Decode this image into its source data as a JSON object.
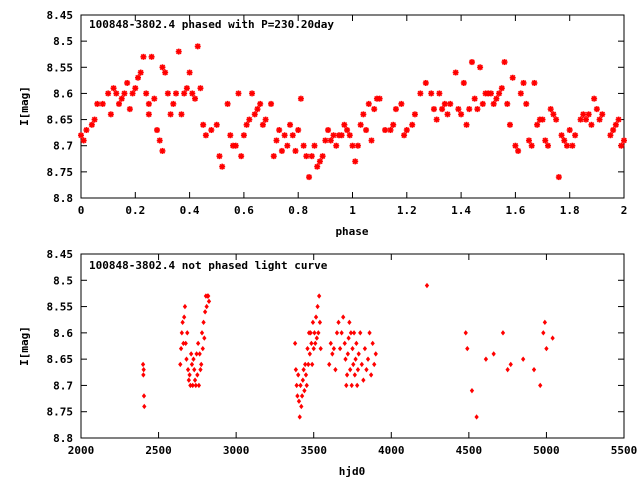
{
  "colors": {
    "points": "#ff0000",
    "axes": "#000000",
    "background": "#ffffff"
  },
  "chart_data": [
    {
      "type": "scatter",
      "title": "100848-3802.4 phased with P=230.20day",
      "xlabel": "phase",
      "ylabel": "I[mag]",
      "xlim": [
        0,
        2
      ],
      "ylim": [
        8.8,
        8.45
      ],
      "y_inverted": true,
      "grid": false,
      "legend": "none",
      "marker": "asterisk",
      "xticks": [
        "0",
        "0.2",
        "0.4",
        "0.6",
        "0.8",
        "1",
        "1.2",
        "1.4",
        "1.6",
        "1.8",
        "2"
      ],
      "yticks": [
        "8.45",
        "8.5",
        "8.55",
        "8.6",
        "8.65",
        "8.7",
        "8.75",
        "8.8"
      ],
      "points": [
        [
          0.0,
          8.68
        ],
        [
          0.01,
          8.69
        ],
        [
          0.02,
          8.67
        ],
        [
          0.04,
          8.66
        ],
        [
          0.05,
          8.65
        ],
        [
          0.06,
          8.62
        ],
        [
          0.08,
          8.62
        ],
        [
          0.1,
          8.6
        ],
        [
          0.11,
          8.64
        ],
        [
          0.12,
          8.59
        ],
        [
          0.13,
          8.6
        ],
        [
          0.14,
          8.62
        ],
        [
          0.15,
          8.61
        ],
        [
          0.16,
          8.6
        ],
        [
          0.17,
          8.58
        ],
        [
          0.18,
          8.63
        ],
        [
          0.19,
          8.6
        ],
        [
          0.2,
          8.59
        ],
        [
          0.21,
          8.57
        ],
        [
          0.22,
          8.56
        ],
        [
          0.23,
          8.53
        ],
        [
          0.24,
          8.6
        ],
        [
          0.25,
          8.62
        ],
        [
          0.25,
          8.64
        ],
        [
          0.26,
          8.53
        ],
        [
          0.27,
          8.61
        ],
        [
          0.28,
          8.67
        ],
        [
          0.29,
          8.69
        ],
        [
          0.3,
          8.71
        ],
        [
          0.3,
          8.55
        ],
        [
          0.31,
          8.56
        ],
        [
          0.32,
          8.6
        ],
        [
          0.33,
          8.64
        ],
        [
          0.34,
          8.62
        ],
        [
          0.35,
          8.6
        ],
        [
          0.36,
          8.52
        ],
        [
          0.37,
          8.64
        ],
        [
          0.38,
          8.6
        ],
        [
          0.39,
          8.59
        ],
        [
          0.4,
          8.56
        ],
        [
          0.41,
          8.6
        ],
        [
          0.42,
          8.61
        ],
        [
          0.43,
          8.51
        ],
        [
          0.44,
          8.59
        ],
        [
          0.45,
          8.66
        ],
        [
          0.46,
          8.68
        ],
        [
          0.48,
          8.67
        ],
        [
          0.5,
          8.66
        ],
        [
          0.51,
          8.72
        ],
        [
          0.52,
          8.74
        ],
        [
          0.54,
          8.62
        ],
        [
          0.55,
          8.68
        ],
        [
          0.56,
          8.7
        ],
        [
          0.57,
          8.7
        ],
        [
          0.58,
          8.6
        ],
        [
          0.59,
          8.72
        ],
        [
          0.6,
          8.68
        ],
        [
          0.61,
          8.66
        ],
        [
          0.62,
          8.65
        ],
        [
          0.63,
          8.6
        ],
        [
          0.64,
          8.64
        ],
        [
          0.65,
          8.63
        ],
        [
          0.66,
          8.62
        ],
        [
          0.67,
          8.66
        ],
        [
          0.68,
          8.65
        ],
        [
          0.7,
          8.62
        ],
        [
          0.71,
          8.72
        ],
        [
          0.72,
          8.69
        ],
        [
          0.73,
          8.67
        ],
        [
          0.74,
          8.71
        ],
        [
          0.75,
          8.68
        ],
        [
          0.76,
          8.7
        ],
        [
          0.77,
          8.66
        ],
        [
          0.78,
          8.68
        ],
        [
          0.79,
          8.71
        ],
        [
          0.8,
          8.67
        ],
        [
          0.81,
          8.61
        ],
        [
          0.82,
          8.7
        ],
        [
          0.83,
          8.72
        ],
        [
          0.84,
          8.76
        ],
        [
          0.85,
          8.72
        ],
        [
          0.86,
          8.7
        ],
        [
          0.87,
          8.74
        ],
        [
          0.88,
          8.73
        ],
        [
          0.89,
          8.72
        ],
        [
          0.9,
          8.69
        ],
        [
          0.91,
          8.67
        ],
        [
          0.92,
          8.69
        ],
        [
          0.93,
          8.68
        ],
        [
          0.94,
          8.7
        ],
        [
          0.95,
          8.68
        ],
        [
          0.96,
          8.68
        ],
        [
          0.97,
          8.66
        ],
        [
          0.98,
          8.67
        ],
        [
          0.99,
          8.68
        ],
        [
          1.0,
          8.7
        ],
        [
          1.01,
          8.73
        ],
        [
          1.02,
          8.7
        ],
        [
          1.03,
          8.66
        ],
        [
          1.04,
          8.64
        ],
        [
          1.05,
          8.67
        ],
        [
          1.06,
          8.62
        ],
        [
          1.07,
          8.69
        ],
        [
          1.08,
          8.63
        ],
        [
          1.09,
          8.61
        ],
        [
          1.1,
          8.61
        ],
        [
          1.12,
          8.67
        ],
        [
          1.14,
          8.67
        ],
        [
          1.15,
          8.66
        ],
        [
          1.16,
          8.63
        ],
        [
          1.18,
          8.62
        ],
        [
          1.19,
          8.68
        ],
        [
          1.2,
          8.67
        ],
        [
          1.22,
          8.66
        ],
        [
          1.23,
          8.64
        ],
        [
          1.25,
          8.6
        ],
        [
          1.27,
          8.58
        ],
        [
          1.29,
          8.6
        ],
        [
          1.3,
          8.63
        ],
        [
          1.31,
          8.65
        ],
        [
          1.32,
          8.6
        ],
        [
          1.33,
          8.63
        ],
        [
          1.34,
          8.62
        ],
        [
          1.35,
          8.64
        ],
        [
          1.36,
          8.62
        ],
        [
          1.38,
          8.56
        ],
        [
          1.39,
          8.63
        ],
        [
          1.4,
          8.64
        ],
        [
          1.41,
          8.58
        ],
        [
          1.42,
          8.66
        ],
        [
          1.43,
          8.63
        ],
        [
          1.44,
          8.54
        ],
        [
          1.45,
          8.61
        ],
        [
          1.46,
          8.63
        ],
        [
          1.47,
          8.55
        ],
        [
          1.48,
          8.62
        ],
        [
          1.49,
          8.6
        ],
        [
          1.5,
          8.6
        ],
        [
          1.51,
          8.6
        ],
        [
          1.52,
          8.62
        ],
        [
          1.53,
          8.61
        ],
        [
          1.54,
          8.6
        ],
        [
          1.55,
          8.59
        ],
        [
          1.56,
          8.54
        ],
        [
          1.57,
          8.62
        ],
        [
          1.58,
          8.66
        ],
        [
          1.59,
          8.57
        ],
        [
          1.6,
          8.7
        ],
        [
          1.61,
          8.71
        ],
        [
          1.62,
          8.6
        ],
        [
          1.63,
          8.58
        ],
        [
          1.64,
          8.62
        ],
        [
          1.65,
          8.69
        ],
        [
          1.66,
          8.7
        ],
        [
          1.67,
          8.58
        ],
        [
          1.68,
          8.66
        ],
        [
          1.69,
          8.65
        ],
        [
          1.7,
          8.65
        ],
        [
          1.71,
          8.69
        ],
        [
          1.72,
          8.7
        ],
        [
          1.73,
          8.63
        ],
        [
          1.74,
          8.64
        ],
        [
          1.75,
          8.65
        ],
        [
          1.76,
          8.76
        ],
        [
          1.77,
          8.68
        ],
        [
          1.78,
          8.69
        ],
        [
          1.79,
          8.7
        ],
        [
          1.8,
          8.67
        ],
        [
          1.81,
          8.7
        ],
        [
          1.82,
          8.68
        ],
        [
          1.84,
          8.65
        ],
        [
          1.85,
          8.64
        ],
        [
          1.86,
          8.65
        ],
        [
          1.87,
          8.64
        ],
        [
          1.88,
          8.66
        ],
        [
          1.89,
          8.61
        ],
        [
          1.9,
          8.63
        ],
        [
          1.91,
          8.65
        ],
        [
          1.92,
          8.64
        ],
        [
          1.95,
          8.68
        ],
        [
          1.96,
          8.67
        ],
        [
          1.97,
          8.66
        ],
        [
          1.98,
          8.65
        ],
        [
          1.99,
          8.7
        ],
        [
          2.0,
          8.69
        ]
      ]
    },
    {
      "type": "scatter",
      "title": "100848-3802.4 not phased light curve",
      "xlabel": "hjd0",
      "ylabel": "I[mag]",
      "xlim": [
        2000,
        5500
      ],
      "ylim": [
        8.8,
        8.45
      ],
      "y_inverted": true,
      "grid": false,
      "legend": "none",
      "marker": "diamond",
      "xticks": [
        "2000",
        "2500",
        "3000",
        "3500",
        "4000",
        "4500",
        "5000",
        "5500"
      ],
      "yticks": [
        "8.45",
        "8.5",
        "8.55",
        "8.6",
        "8.65",
        "8.7",
        "8.75",
        "8.8"
      ],
      "points": [
        [
          2400,
          8.66
        ],
        [
          2402,
          8.68
        ],
        [
          2404,
          8.67
        ],
        [
          2406,
          8.72
        ],
        [
          2408,
          8.74
        ],
        [
          2640,
          8.66
        ],
        [
          2645,
          8.63
        ],
        [
          2650,
          8.6
        ],
        [
          2655,
          8.58
        ],
        [
          2660,
          8.62
        ],
        [
          2665,
          8.57
        ],
        [
          2670,
          8.55
        ],
        [
          2675,
          8.62
        ],
        [
          2680,
          8.65
        ],
        [
          2685,
          8.6
        ],
        [
          2690,
          8.67
        ],
        [
          2695,
          8.69
        ],
        [
          2700,
          8.68
        ],
        [
          2705,
          8.7
        ],
        [
          2710,
          8.64
        ],
        [
          2715,
          8.66
        ],
        [
          2720,
          8.7
        ],
        [
          2725,
          8.65
        ],
        [
          2730,
          8.67
        ],
        [
          2735,
          8.69
        ],
        [
          2740,
          8.7
        ],
        [
          2745,
          8.64
        ],
        [
          2750,
          8.68
        ],
        [
          2755,
          8.62
        ],
        [
          2760,
          8.7
        ],
        [
          2765,
          8.64
        ],
        [
          2770,
          8.67
        ],
        [
          2775,
          8.66
        ],
        [
          2780,
          8.6
        ],
        [
          2785,
          8.63
        ],
        [
          2790,
          8.58
        ],
        [
          2795,
          8.61
        ],
        [
          2800,
          8.56
        ],
        [
          2805,
          8.53
        ],
        [
          2810,
          8.55
        ],
        [
          2815,
          8.53
        ],
        [
          2820,
          8.53
        ],
        [
          2825,
          8.54
        ],
        [
          3380,
          8.62
        ],
        [
          3385,
          8.67
        ],
        [
          3390,
          8.7
        ],
        [
          3395,
          8.72
        ],
        [
          3400,
          8.68
        ],
        [
          3405,
          8.73
        ],
        [
          3410,
          8.76
        ],
        [
          3415,
          8.7
        ],
        [
          3420,
          8.74
        ],
        [
          3425,
          8.72
        ],
        [
          3430,
          8.69
        ],
        [
          3435,
          8.67
        ],
        [
          3440,
          8.71
        ],
        [
          3445,
          8.66
        ],
        [
          3450,
          8.68
        ],
        [
          3455,
          8.7
        ],
        [
          3460,
          8.63
        ],
        [
          3465,
          8.66
        ],
        [
          3470,
          8.6
        ],
        [
          3475,
          8.64
        ],
        [
          3480,
          8.6
        ],
        [
          3485,
          8.62
        ],
        [
          3490,
          8.66
        ],
        [
          3495,
          8.58
        ],
        [
          3500,
          8.63
        ],
        [
          3505,
          8.6
        ],
        [
          3510,
          8.62
        ],
        [
          3515,
          8.57
        ],
        [
          3520,
          8.61
        ],
        [
          3525,
          8.55
        ],
        [
          3530,
          8.6
        ],
        [
          3535,
          8.53
        ],
        [
          3540,
          8.58
        ],
        [
          3545,
          8.63
        ],
        [
          3600,
          8.66
        ],
        [
          3610,
          8.62
        ],
        [
          3620,
          8.64
        ],
        [
          3630,
          8.63
        ],
        [
          3640,
          8.67
        ],
        [
          3650,
          8.6
        ],
        [
          3660,
          8.58
        ],
        [
          3670,
          8.63
        ],
        [
          3680,
          8.6
        ],
        [
          3690,
          8.57
        ],
        [
          3700,
          8.62
        ],
        [
          3705,
          8.65
        ],
        [
          3710,
          8.7
        ],
        [
          3715,
          8.68
        ],
        [
          3720,
          8.64
        ],
        [
          3725,
          8.61
        ],
        [
          3730,
          8.58
        ],
        [
          3735,
          8.67
        ],
        [
          3740,
          8.6
        ],
        [
          3745,
          8.7
        ],
        [
          3750,
          8.63
        ],
        [
          3755,
          8.66
        ],
        [
          3760,
          8.6
        ],
        [
          3765,
          8.68
        ],
        [
          3770,
          8.65
        ],
        [
          3775,
          8.62
        ],
        [
          3780,
          8.7
        ],
        [
          3785,
          8.67
        ],
        [
          3790,
          8.64
        ],
        [
          3800,
          8.6
        ],
        [
          3810,
          8.66
        ],
        [
          3820,
          8.69
        ],
        [
          3830,
          8.63
        ],
        [
          3840,
          8.67
        ],
        [
          3850,
          8.65
        ],
        [
          3860,
          8.6
        ],
        [
          3870,
          8.68
        ],
        [
          3880,
          8.62
        ],
        [
          3890,
          8.66
        ],
        [
          3900,
          8.64
        ],
        [
          4230,
          8.51
        ],
        [
          4480,
          8.6
        ],
        [
          4490,
          8.63
        ],
        [
          4520,
          8.71
        ],
        [
          4550,
          8.76
        ],
        [
          4610,
          8.65
        ],
        [
          4660,
          8.64
        ],
        [
          4720,
          8.6
        ],
        [
          4750,
          8.67
        ],
        [
          4770,
          8.66
        ],
        [
          4850,
          8.65
        ],
        [
          4920,
          8.67
        ],
        [
          4960,
          8.7
        ],
        [
          4980,
          8.6
        ],
        [
          4990,
          8.58
        ],
        [
          5000,
          8.63
        ],
        [
          5040,
          8.61
        ]
      ]
    }
  ]
}
